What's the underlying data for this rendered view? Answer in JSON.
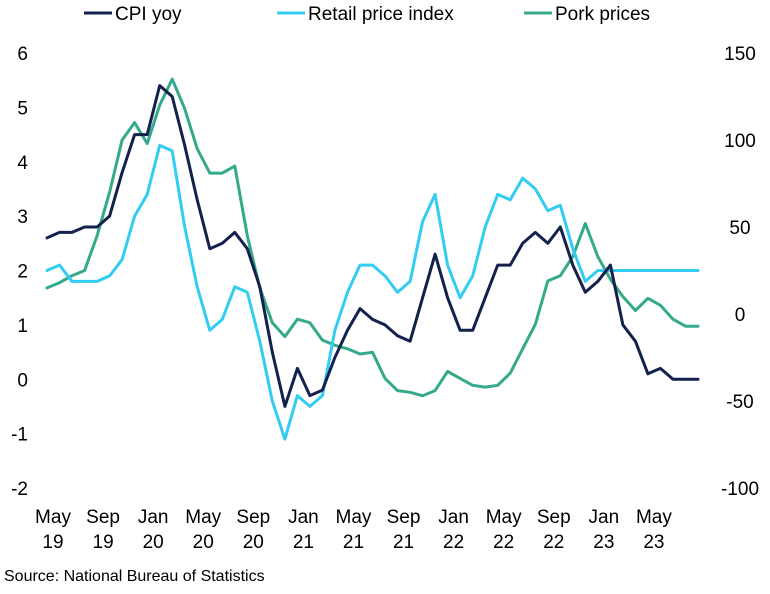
{
  "chart_data": {
    "type": "line",
    "x_tick_labels": [
      {
        "month": "May",
        "year": "19"
      },
      {
        "month": "Sep",
        "year": "19"
      },
      {
        "month": "Jan",
        "year": "20"
      },
      {
        "month": "May",
        "year": "20"
      },
      {
        "month": "Sep",
        "year": "20"
      },
      {
        "month": "Jan",
        "year": "21"
      },
      {
        "month": "May",
        "year": "21"
      },
      {
        "month": "Sep",
        "year": "21"
      },
      {
        "month": "Jan",
        "year": "22"
      },
      {
        "month": "May",
        "year": "22"
      },
      {
        "month": "Sep",
        "year": "22"
      },
      {
        "month": "Jan",
        "year": "23"
      },
      {
        "month": "May",
        "year": "23"
      }
    ],
    "x_start": "May 2019",
    "x_end": "Aug 2023",
    "y_left": {
      "min": -2,
      "max": 6,
      "ticks": [
        "6",
        "5",
        "4",
        "3",
        "2",
        "1",
        "0",
        "-1",
        "-2"
      ]
    },
    "y_right": {
      "min": -100,
      "max": 150,
      "ticks": [
        "150",
        "100",
        "50",
        "0",
        "-50",
        "-100"
      ]
    },
    "legend_position": "top",
    "series": [
      {
        "name": "CPI yoy",
        "color": "#14214d",
        "axis": "left",
        "values": [
          2.6,
          2.7,
          2.7,
          2.8,
          2.8,
          3.0,
          3.8,
          4.5,
          4.5,
          5.4,
          5.2,
          4.3,
          3.3,
          2.4,
          2.5,
          2.7,
          2.4,
          1.7,
          0.5,
          -0.5,
          0.2,
          -0.3,
          -0.2,
          0.4,
          0.9,
          1.3,
          1.1,
          1.0,
          0.8,
          0.7,
          1.5,
          2.3,
          1.5,
          0.9,
          0.9,
          1.5,
          2.1,
          2.1,
          2.5,
          2.7,
          2.5,
          2.8,
          2.1,
          1.6,
          1.8,
          2.1,
          1.0,
          0.7,
          0.1,
          0.2,
          0.0,
          0.0,
          0.0
        ]
      },
      {
        "name": "Retail price index",
        "color": "#33ccf2",
        "axis": "left",
        "values": [
          2.0,
          2.1,
          1.8,
          1.8,
          1.8,
          1.9,
          2.2,
          3.0,
          3.4,
          4.3,
          4.2,
          2.8,
          1.7,
          0.9,
          1.1,
          1.7,
          1.6,
          0.7,
          -0.4,
          -1.1,
          -0.3,
          -0.5,
          -0.3,
          0.9,
          1.6,
          2.1,
          2.1,
          1.9,
          1.6,
          1.8,
          2.9,
          3.4,
          2.1,
          1.5,
          1.9,
          2.8,
          3.4,
          3.3,
          3.7,
          3.5,
          3.1,
          3.2,
          2.4,
          1.8,
          2.0,
          2.0,
          2.0,
          2.0,
          2.0,
          2.0,
          2.0,
          2.0,
          2.0
        ]
      },
      {
        "name": "Pork prices",
        "color": "#35a98b",
        "axis": "right",
        "values": [
          15,
          18,
          22,
          25,
          45,
          70,
          100,
          110,
          98,
          120,
          135,
          118,
          95,
          81,
          81,
          85,
          45,
          15,
          -5,
          -13,
          -3,
          -5,
          -15,
          -18,
          -20,
          -23,
          -22,
          -37,
          -44,
          -45,
          -47,
          -44,
          -33,
          -37,
          -41,
          -42,
          -41,
          -34,
          -20,
          -6,
          19,
          22,
          33,
          52,
          33,
          20,
          10,
          2,
          9,
          5,
          -3,
          -7,
          -7
        ]
      }
    ],
    "source": "Source: National Bureau of Statistics"
  }
}
